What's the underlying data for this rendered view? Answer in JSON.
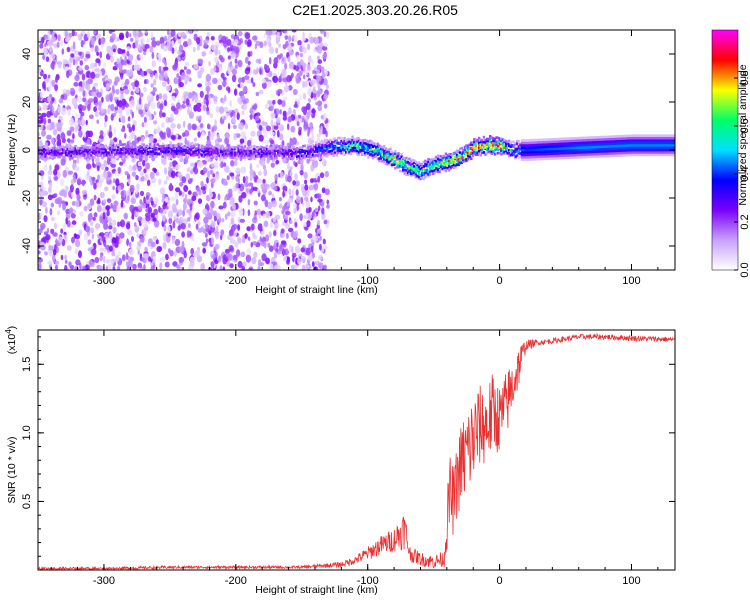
{
  "title": "C2E1.2025.303.20.26.R05",
  "chart_data": [
    {
      "type": "heatmap",
      "xlabel": "Height of straight line (km)",
      "ylabel": "Frequency (Hz)",
      "xlim": [
        -350,
        133
      ],
      "ylim": [
        -50,
        50
      ],
      "xticks": [
        -300,
        -200,
        -100,
        0,
        100
      ],
      "yticks": [
        -40,
        -20,
        0,
        20,
        40
      ],
      "colorbar": {
        "label": "Normalized spectral amplitude",
        "range": [
          0,
          1
        ],
        "ticks": [
          "0.0",
          "0.2",
          "0.4",
          "0.6",
          "0.8"
        ],
        "tick_values": [
          0,
          0.2,
          0.4,
          0.6,
          0.8
        ],
        "colors": [
          "#ffffff",
          "#c9a0ff",
          "#7a00ff",
          "#0000ff",
          "#00e0ff",
          "#00ff66",
          "#ffff00",
          "#ff0000",
          "#ff00ff"
        ]
      },
      "noise_region": {
        "x_range": [
          -350,
          -130
        ],
        "mean_amplitude": 0.12
      },
      "signal_centerline": {
        "x": [
          -350,
          -250,
          -200,
          -150,
          -130,
          -110,
          -95,
          -80,
          -70,
          -60,
          -50,
          -40,
          -30,
          -20,
          -10,
          0,
          10,
          20,
          60,
          100,
          133
        ],
        "y": [
          -1,
          0,
          -1,
          -1,
          1,
          2,
          0,
          -4,
          -7,
          -9,
          -6,
          -5,
          -3,
          1,
          2,
          2,
          0,
          0,
          1,
          2,
          2
        ],
        "amplitude": [
          0.25,
          0.3,
          0.25,
          0.3,
          0.4,
          0.55,
          0.6,
          0.65,
          0.6,
          0.6,
          0.65,
          0.7,
          0.75,
          0.8,
          0.75,
          0.8,
          0.45,
          0.4,
          0.45,
          0.45,
          0.45
        ]
      }
    },
    {
      "type": "line",
      "xlabel": "Height of straight line (km)",
      "ylabel": "SNR (10 * v/v)",
      "multiplier": "(x10",
      "multiplier_exp": "4",
      "multiplier_close": ")",
      "xlim": [
        -350,
        133
      ],
      "ylim": [
        0,
        1.75
      ],
      "xticks": [
        -300,
        -200,
        -100,
        0,
        100
      ],
      "yticks": [
        0.5,
        1.0,
        1.5
      ],
      "ytick_labels": [
        "0.5",
        "1.0",
        "1.5"
      ],
      "color": "#e83030",
      "x": [
        -350,
        -300,
        -250,
        -200,
        -150,
        -120,
        -110,
        -100,
        -90,
        -80,
        -72,
        -68,
        -60,
        -50,
        -42,
        -38,
        -35,
        -30,
        -25,
        -20,
        -15,
        -10,
        -5,
        0,
        5,
        10,
        15,
        20,
        30,
        40,
        60,
        80,
        100,
        133
      ],
      "y": [
        0.01,
        0.01,
        0.02,
        0.02,
        0.02,
        0.04,
        0.07,
        0.12,
        0.18,
        0.22,
        0.3,
        0.12,
        0.08,
        0.06,
        0.08,
        0.55,
        0.5,
        0.75,
        0.85,
        0.95,
        1.05,
        1.05,
        1.15,
        1.1,
        1.2,
        1.35,
        1.5,
        1.64,
        1.66,
        1.67,
        1.7,
        1.7,
        1.69,
        1.68
      ],
      "noise_amplitude": [
        0.01,
        0.01,
        0.01,
        0.01,
        0.01,
        0.02,
        0.03,
        0.05,
        0.07,
        0.09,
        0.15,
        0.06,
        0.05,
        0.05,
        0.06,
        0.3,
        0.25,
        0.3,
        0.35,
        0.35,
        0.3,
        0.3,
        0.3,
        0.25,
        0.25,
        0.2,
        0.15,
        0.04,
        0.02,
        0.02,
        0.02,
        0.02,
        0.02,
        0.02
      ]
    }
  ]
}
